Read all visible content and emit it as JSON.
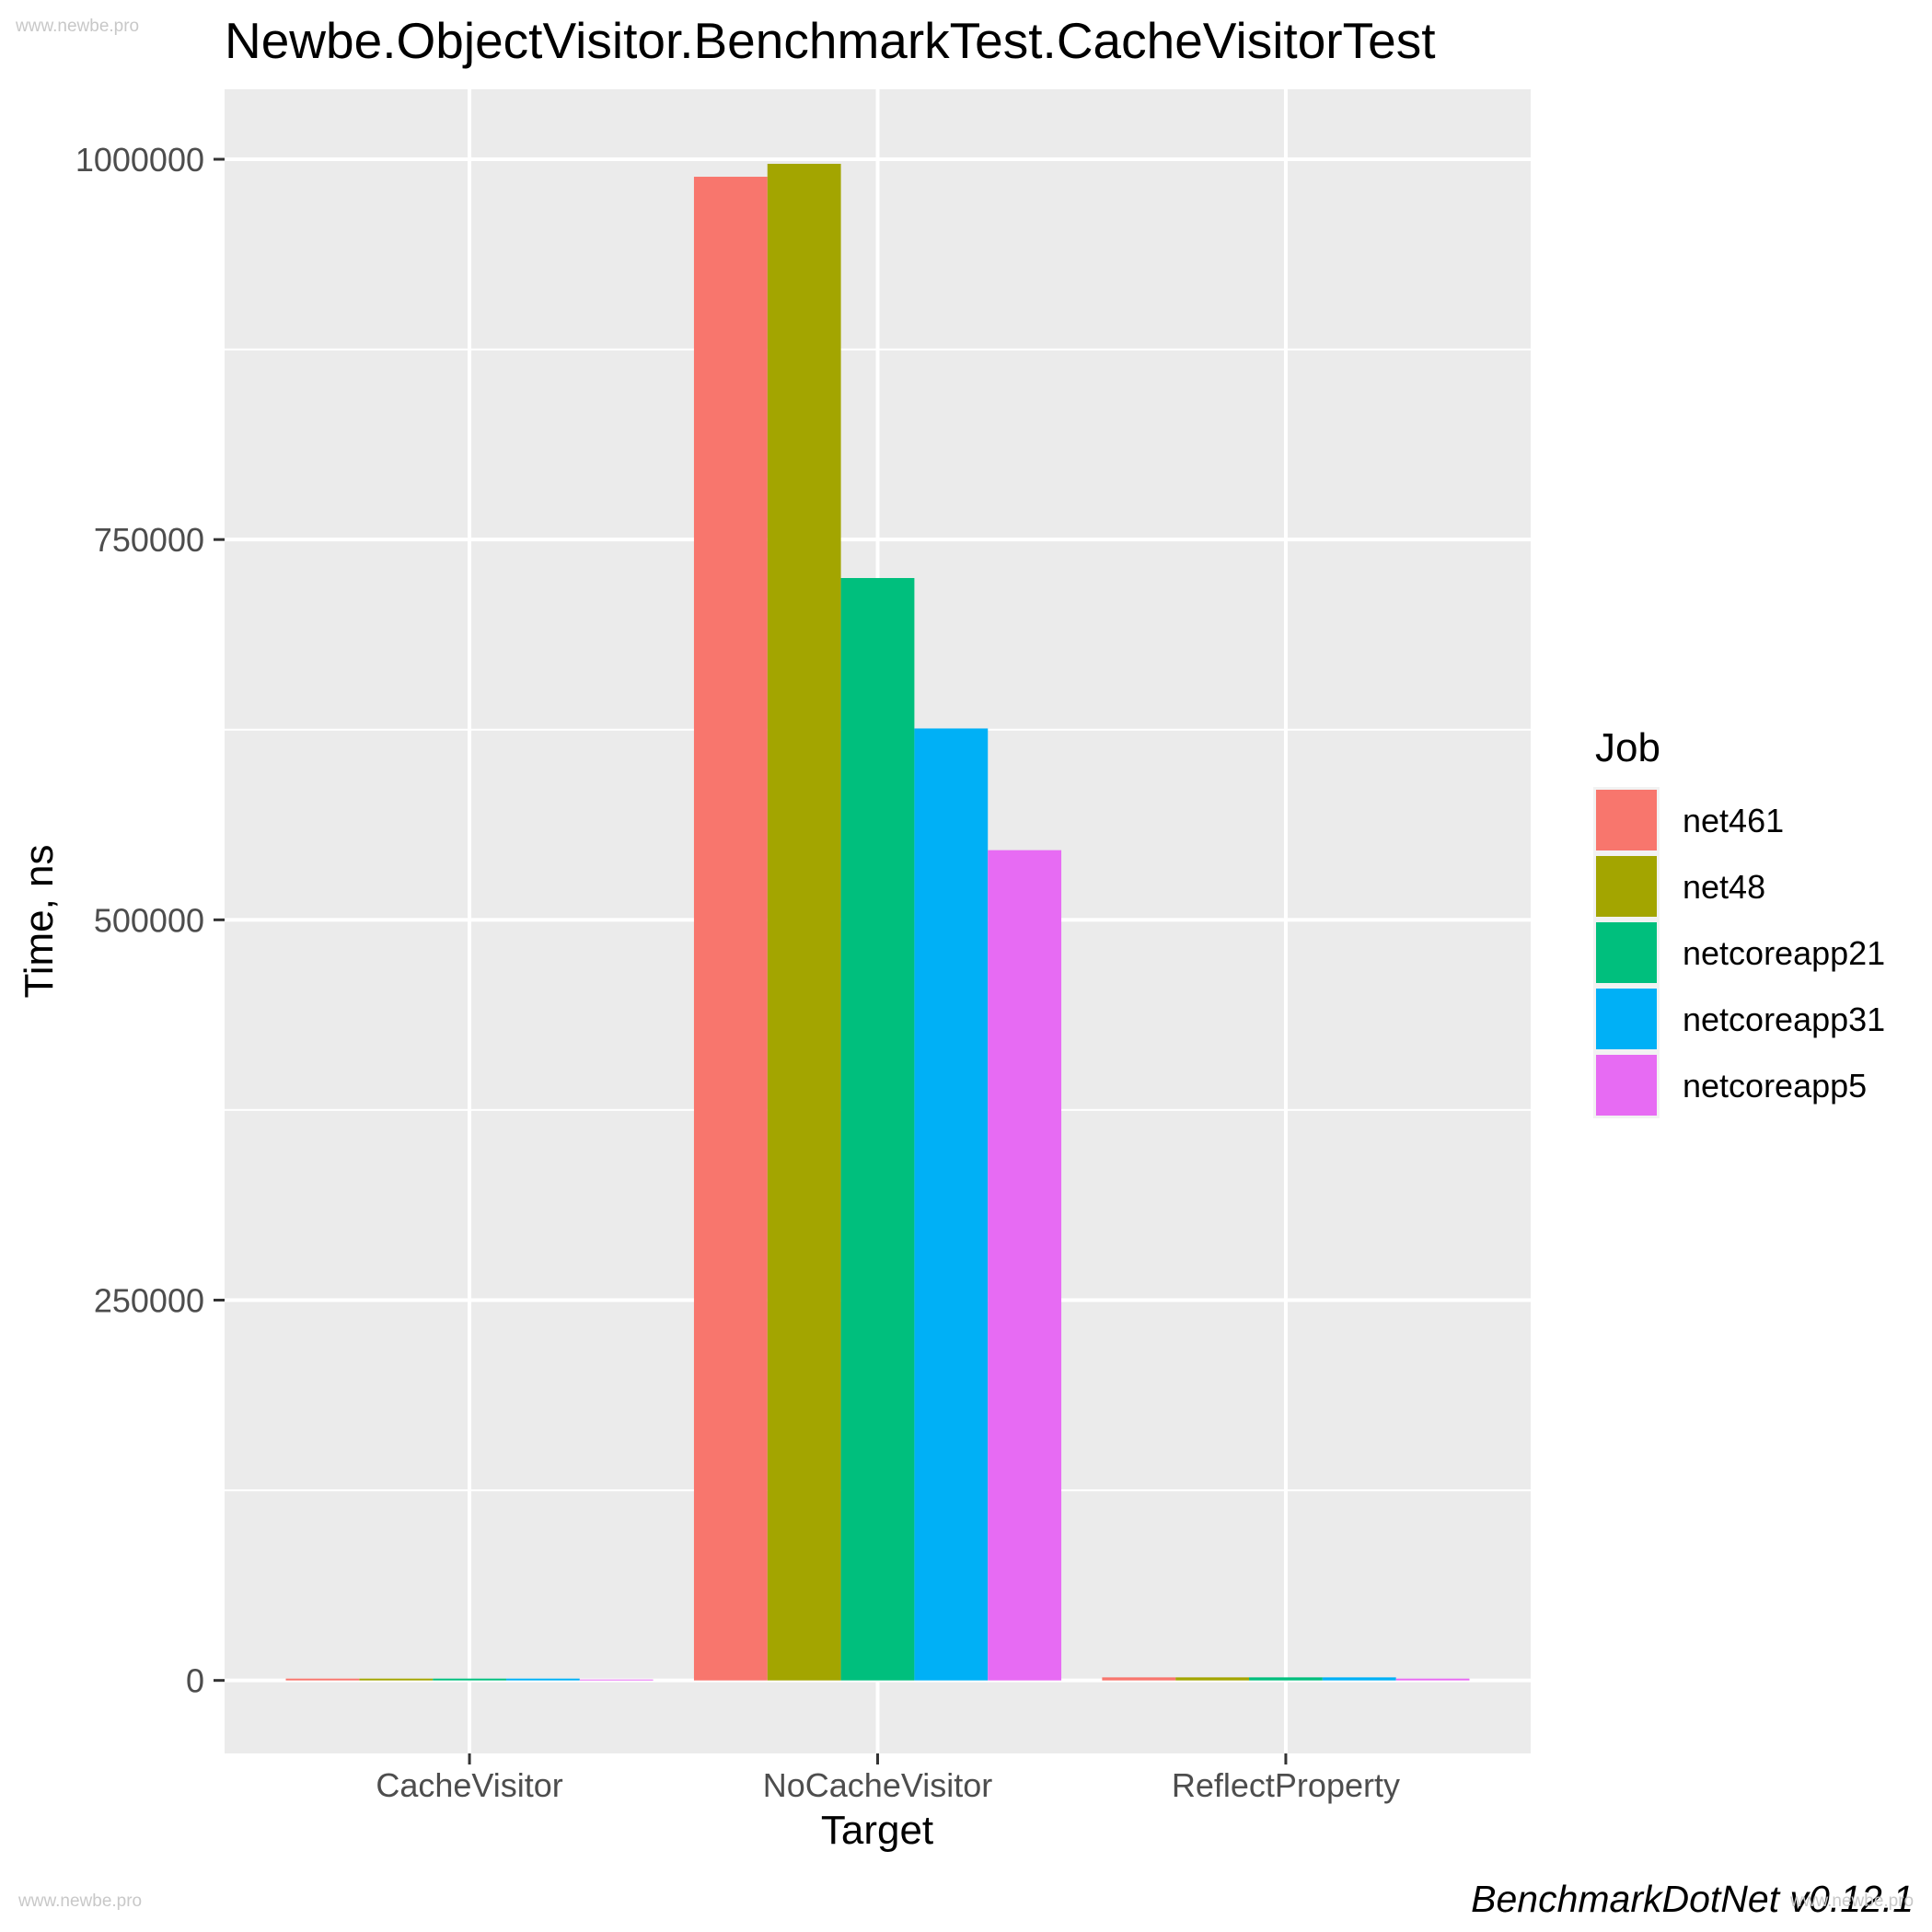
{
  "watermark": {
    "top": "www.newbe.pro",
    "bottom_left": "www.newbe.pro",
    "bottom_right": "www.newbe.pro"
  },
  "title": "Newbe.ObjectVisitor.BenchmarkTest.CacheVisitorTest",
  "footer": "BenchmarkDotNet v0.12.1",
  "colors": {
    "panel_bg": "#EBEBEB",
    "grid": "#FFFFFF",
    "tick_text": "#4D4D4D",
    "tick_mark": "#333333",
    "legend_key_bg": "#F2F2F2"
  },
  "legend": {
    "title": "Job",
    "items": [
      {
        "label": "net461",
        "color": "#F8766D"
      },
      {
        "label": "net48",
        "color": "#A3A500"
      },
      {
        "label": "netcoreapp21",
        "color": "#00BF7D"
      },
      {
        "label": "netcoreapp31",
        "color": "#00B0F6"
      },
      {
        "label": "netcoreapp5",
        "color": "#E76BF3"
      }
    ]
  },
  "chart_data": {
    "type": "bar",
    "title": "Newbe.ObjectVisitor.BenchmarkTest.CacheVisitorTest",
    "xlabel": "Target",
    "ylabel": "Time, ns",
    "categories": [
      "CacheVisitor",
      "NoCacheVisitor",
      "ReflectProperty"
    ],
    "series": [
      {
        "name": "net461",
        "color": "#F8766D",
        "values": [
          1200,
          988500,
          2000
        ]
      },
      {
        "name": "net48",
        "color": "#A3A500",
        "values": [
          1200,
          997000,
          2000
        ]
      },
      {
        "name": "netcoreapp21",
        "color": "#00BF7D",
        "values": [
          1200,
          724700,
          2000
        ]
      },
      {
        "name": "netcoreapp31",
        "color": "#00B0F6",
        "values": [
          1200,
          625800,
          2000
        ]
      },
      {
        "name": "netcoreapp5",
        "color": "#E76BF3",
        "values": [
          600,
          545800,
          1200
        ]
      }
    ],
    "y_ticks": [
      0,
      250000,
      500000,
      750000,
      1000000
    ],
    "y_tick_labels": [
      "0",
      "250000",
      "500000",
      "750000",
      "1000000"
    ],
    "y_minor_ticks": [
      125000,
      375000,
      625000,
      875000
    ],
    "ylim": [
      -48000,
      1046000
    ],
    "grid": true,
    "legend_position": "right",
    "legend_title": "Job",
    "position": "dodge"
  }
}
